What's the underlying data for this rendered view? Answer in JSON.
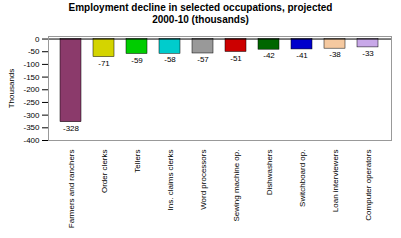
{
  "chart_data": {
    "type": "bar",
    "title": "Employment decline in selected occupations, projected\n2000-10 (thousands)",
    "ylabel": "Thousands",
    "categories": [
      "Farmers and ranchers",
      "Order clerks",
      "Tellers",
      "Ins. claims clerks",
      "Word processors",
      "Sewing machine op.",
      "Dishwashers",
      "Switchboard op.",
      "Loan interviewers",
      "Computer operators"
    ],
    "values": [
      -328,
      -71,
      -59,
      -58,
      -57,
      -51,
      -42,
      -41,
      -38,
      -33
    ],
    "colors": [
      "#8b3a6b",
      "#d4d400",
      "#00cc00",
      "#00cccc",
      "#999999",
      "#cc0000",
      "#006600",
      "#0000cc",
      "#f5c9a0",
      "#c8a8e8"
    ],
    "ylim": [
      -400,
      10
    ],
    "yticks": [
      0,
      -50,
      -100,
      -150,
      -200,
      -250,
      -300,
      -350,
      -400
    ],
    "grid": false,
    "data_labels": true
  }
}
